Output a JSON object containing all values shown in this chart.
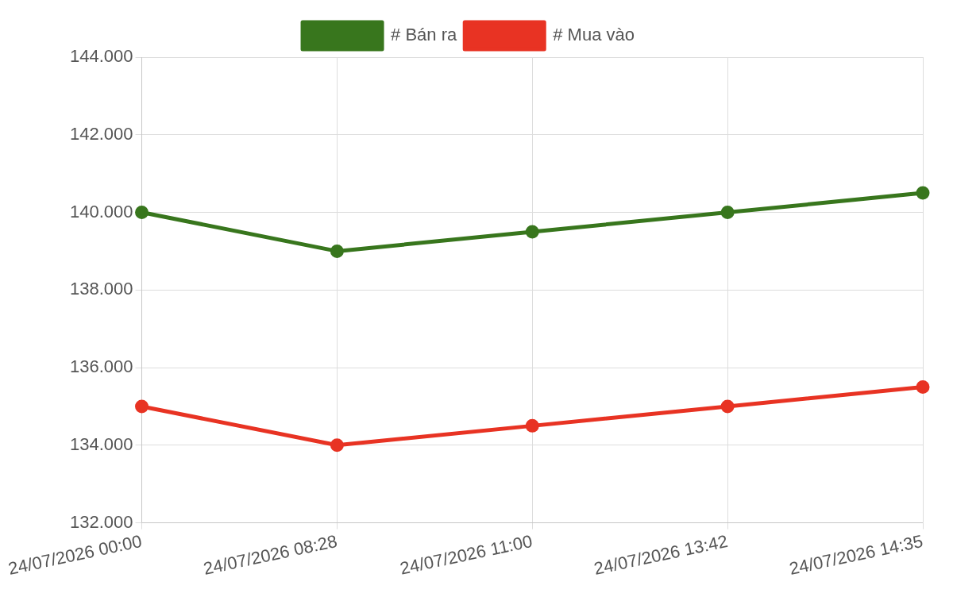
{
  "chart_data": {
    "type": "line",
    "categories": [
      "24/07/2026 00:00",
      "24/07/2026 08:28",
      "24/07/2026 11:00",
      "24/07/2026 13:42",
      "24/07/2026 14:35"
    ],
    "series": [
      {
        "name": "# Bán ra",
        "color": "#38761d",
        "values": [
          140000,
          139000,
          139500,
          140000,
          140500
        ]
      },
      {
        "name": "# Mua vào",
        "color": "#e83323",
        "values": [
          135000,
          134000,
          134500,
          135000,
          135500
        ]
      }
    ],
    "ylim": [
      132000,
      144000
    ],
    "yticks": [
      {
        "value": 132000,
        "label": "132.000"
      },
      {
        "value": 134000,
        "label": "134.000"
      },
      {
        "value": 136000,
        "label": "136.000"
      },
      {
        "value": 138000,
        "label": "138.000"
      },
      {
        "value": 140000,
        "label": "140.000"
      },
      {
        "value": 142000,
        "label": "142.000"
      },
      {
        "value": 144000,
        "label": "144.000"
      }
    ],
    "grid": true,
    "legend": "top",
    "marker": "circle",
    "line_style": "solid"
  }
}
